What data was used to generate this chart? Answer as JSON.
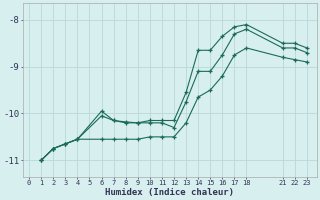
{
  "xlabel": "Humidex (Indice chaleur)",
  "bg_color": "#d8efef",
  "grid_color": "#b8d8d8",
  "line_color": "#1a6b5a",
  "xlim": [
    -0.5,
    23.8
  ],
  "ylim": [
    -11.35,
    -7.65
  ],
  "yticks": [
    -11,
    -10,
    -9,
    -8
  ],
  "xticks": [
    0,
    1,
    2,
    3,
    4,
    5,
    6,
    7,
    8,
    9,
    10,
    11,
    12,
    13,
    14,
    15,
    16,
    17,
    18,
    21,
    22,
    23
  ],
  "line1_x": [
    1,
    2,
    3,
    4,
    6,
    7,
    8,
    9,
    10,
    11,
    12,
    13,
    14,
    15,
    16,
    17,
    18,
    21,
    22,
    23
  ],
  "line1_y": [
    -11.0,
    -10.75,
    -10.65,
    -10.55,
    -10.05,
    -10.15,
    -10.18,
    -10.2,
    -10.15,
    -10.15,
    -10.15,
    -9.55,
    -8.65,
    -8.65,
    -8.35,
    -8.15,
    -8.1,
    -8.5,
    -8.5,
    -8.6
  ],
  "line2_x": [
    1,
    2,
    3,
    4,
    6,
    7,
    8,
    9,
    10,
    11,
    12,
    13,
    14,
    15,
    16,
    17,
    18,
    21,
    22,
    23
  ],
  "line2_y": [
    -11.0,
    -10.75,
    -10.65,
    -10.55,
    -9.95,
    -10.15,
    -10.2,
    -10.2,
    -10.2,
    -10.2,
    -10.3,
    -9.75,
    -9.1,
    -9.1,
    -8.75,
    -8.3,
    -8.2,
    -8.6,
    -8.6,
    -8.7
  ],
  "line3_x": [
    1,
    2,
    3,
    4,
    6,
    7,
    8,
    9,
    10,
    11,
    12,
    13,
    14,
    15,
    16,
    17,
    18,
    21,
    22,
    23
  ],
  "line3_y": [
    -11.0,
    -10.75,
    -10.65,
    -10.55,
    -10.55,
    -10.55,
    -10.55,
    -10.55,
    -10.5,
    -10.5,
    -10.5,
    -10.2,
    -9.65,
    -9.5,
    -9.2,
    -8.75,
    -8.6,
    -8.8,
    -8.85,
    -8.9
  ],
  "figsize": [
    3.2,
    2.0
  ],
  "dpi": 100
}
